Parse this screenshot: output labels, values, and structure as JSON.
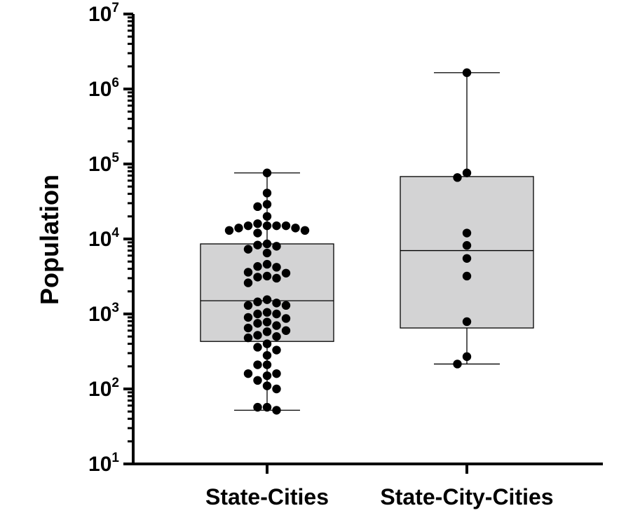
{
  "chart_data": {
    "type": "box",
    "title": "",
    "xlabel": "",
    "ylabel": "Population",
    "yscale": "log",
    "ylim": [
      10,
      10000000
    ],
    "yticks": [
      {
        "base": "10",
        "exp": "1",
        "value": 10
      },
      {
        "base": "10",
        "exp": "2",
        "value": 100
      },
      {
        "base": "10",
        "exp": "3",
        "value": 1000
      },
      {
        "base": "10",
        "exp": "4",
        "value": 10000
      },
      {
        "base": "10",
        "exp": "5",
        "value": 100000
      },
      {
        "base": "10",
        "exp": "6",
        "value": 1000000
      },
      {
        "base": "10",
        "exp": "7",
        "value": 10000000
      }
    ],
    "categories": [
      "State-Cities",
      "State-City-Cities"
    ],
    "box_color": "#d3d3d4",
    "point_color": "#000000",
    "series": [
      {
        "category": "State-Cities",
        "whisker_low": 52,
        "q1": 430,
        "median": 1500,
        "q3": 8600,
        "whisker_high": 76000,
        "points": [
          76000,
          41000,
          29000,
          27000,
          20000,
          16000,
          15000,
          15000,
          15000,
          15000,
          14000,
          14000,
          13000,
          13000,
          12000,
          8600,
          8300,
          8000,
          7300,
          6500,
          4600,
          4300,
          4200,
          3600,
          3500,
          3200,
          3100,
          3000,
          2600,
          1550,
          1450,
          1400,
          1300,
          1300,
          1050,
          1000,
          1000,
          900,
          870,
          780,
          750,
          700,
          650,
          600,
          580,
          520,
          500,
          480,
          400,
          360,
          330,
          280,
          210,
          210,
          160,
          160,
          150,
          130,
          110,
          100,
          57,
          57,
          52
        ]
      },
      {
        "category": "State-City-Cities",
        "whisker_low": 215,
        "q1": 650,
        "median": 7000,
        "q3": 68000,
        "whisker_high": 1650000,
        "points": [
          1650000,
          76000,
          66000,
          12000,
          8200,
          5500,
          3200,
          790,
          270,
          215
        ]
      }
    ]
  }
}
